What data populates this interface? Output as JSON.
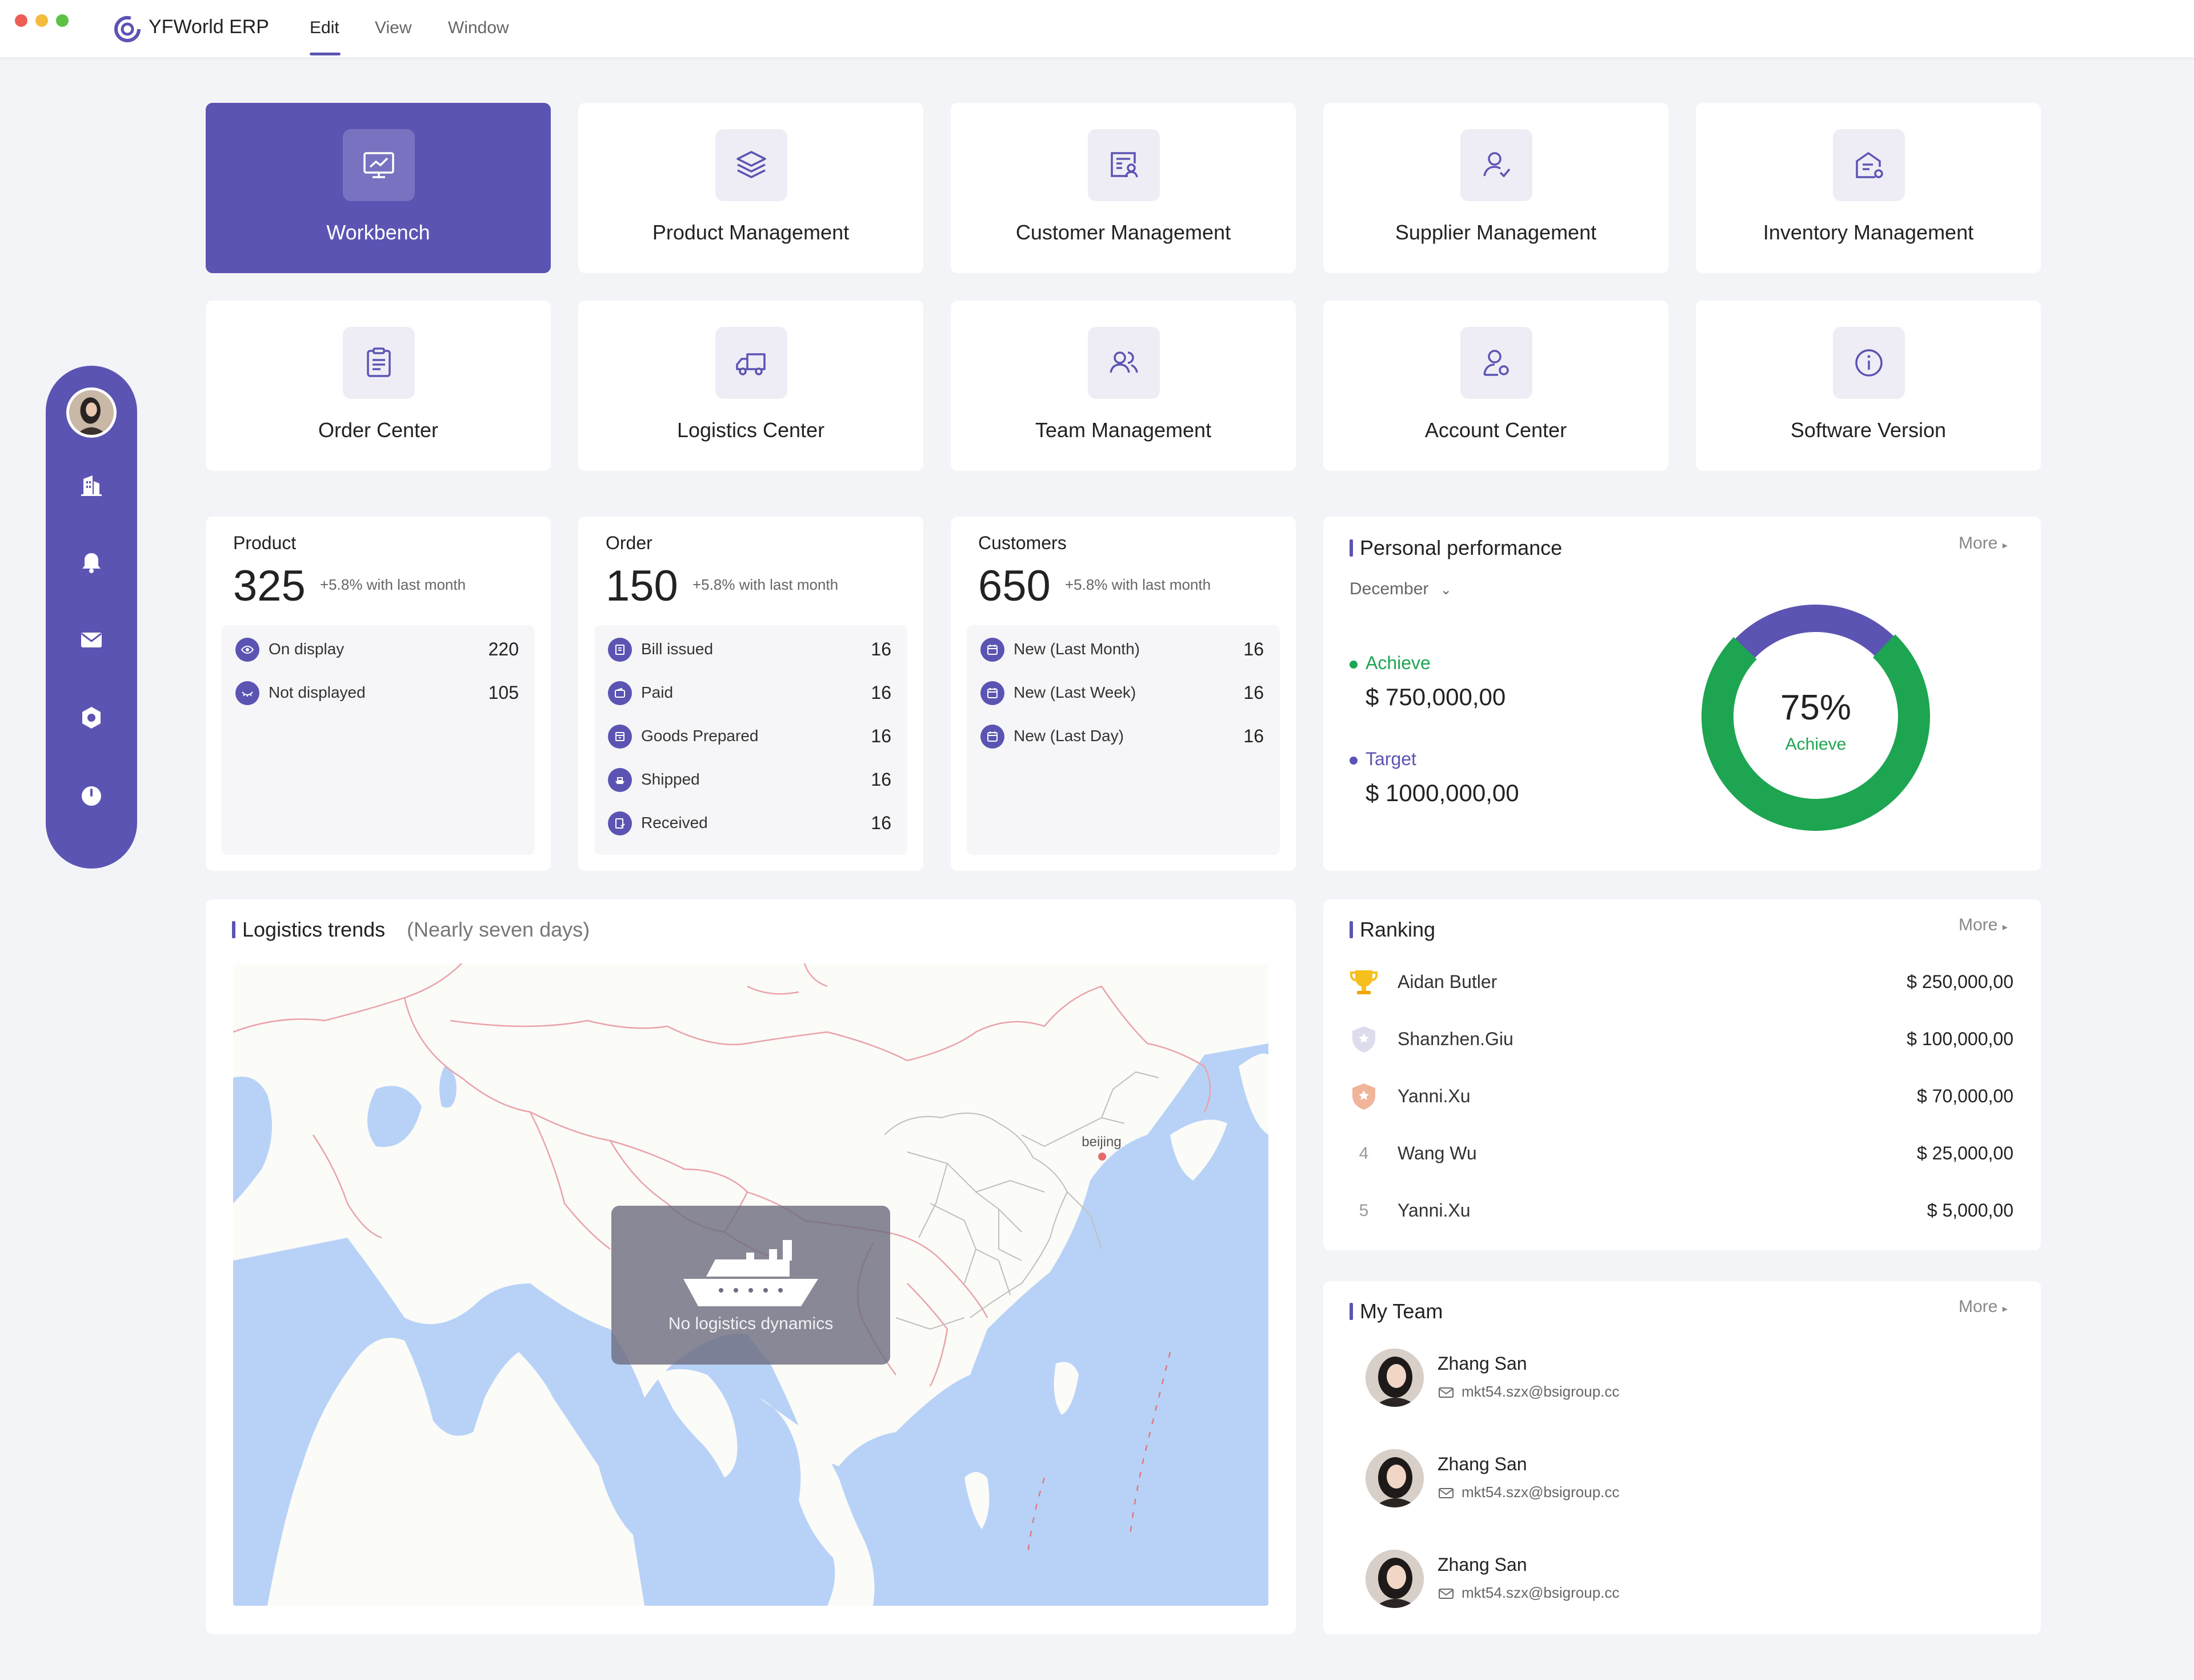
{
  "app": {
    "title": "YFWorld ERP"
  },
  "menu": [
    "Edit",
    "View",
    "Window"
  ],
  "colors": {
    "accent": "#5b54b3",
    "achieve": "#1da552",
    "background": "#f3f4f7"
  },
  "sidebar": {
    "icons": [
      "building-icon",
      "bell-icon",
      "mail-icon",
      "settings-icon",
      "power-icon"
    ]
  },
  "modules": [
    {
      "label": "Workbench",
      "icon": "monitor-chart-icon",
      "active": true
    },
    {
      "label": "Product Management",
      "icon": "layers-icon"
    },
    {
      "label": "Customer Management",
      "icon": "customer-card-icon"
    },
    {
      "label": "Supplier Management",
      "icon": "user-check-icon"
    },
    {
      "label": "Inventory Management",
      "icon": "warehouse-icon"
    },
    {
      "label": "Order Center",
      "icon": "clipboard-icon"
    },
    {
      "label": "Logistics Center",
      "icon": "truck-icon"
    },
    {
      "label": "Team Management",
      "icon": "users-icon"
    },
    {
      "label": "Account Center",
      "icon": "user-gear-icon"
    },
    {
      "label": "Software Version",
      "icon": "info-icon"
    }
  ],
  "stats": [
    {
      "title": "Product",
      "value": "325",
      "delta": "+5.8% with last month",
      "rows": [
        {
          "label": "On display",
          "value": "220",
          "icon": "eye-icon"
        },
        {
          "label": "Not displayed",
          "value": "105",
          "icon": "eye-closed-icon"
        }
      ]
    },
    {
      "title": "Order",
      "value": "150",
      "delta": "+5.8% with last month",
      "rows": [
        {
          "label": "Bill issued",
          "value": "16",
          "icon": "bill-icon"
        },
        {
          "label": "Paid",
          "value": "16",
          "icon": "wallet-icon"
        },
        {
          "label": "Goods Prepared",
          "value": "16",
          "icon": "package-icon"
        },
        {
          "label": "Shipped",
          "value": "16",
          "icon": "ship-icon"
        },
        {
          "label": "Received",
          "value": "16",
          "icon": "received-icon"
        }
      ]
    },
    {
      "title": "Customers",
      "value": "650",
      "delta": "+5.8% with last month",
      "rows": [
        {
          "label": "New (Last Month)",
          "value": "16",
          "icon": "calendar-month-icon"
        },
        {
          "label": "New (Last Week)",
          "value": "16",
          "icon": "calendar-week-icon"
        },
        {
          "label": "New (Last Day)",
          "value": "16",
          "icon": "calendar-day-icon"
        }
      ]
    }
  ],
  "performance": {
    "title": "Personal performance",
    "more": "More",
    "month": "December",
    "achieve_label": "Achieve",
    "achieve_value": "$ 750,000,00",
    "target_label": "Target",
    "target_value": "$ 1000,000,00",
    "percent_text": "75%",
    "percent": 0.75,
    "donut_caption": "Achieve"
  },
  "logistics": {
    "title": "Logistics trends",
    "subtitle": "(Nearly seven days)",
    "city_label": "beijing",
    "empty_text": "No logistics dynamics"
  },
  "ranking": {
    "title": "Ranking",
    "more": "More",
    "items": [
      {
        "rank": "1",
        "name": "Aidan Butler",
        "value": "$ 250,000,00",
        "medal": "gold-trophy-icon"
      },
      {
        "rank": "2",
        "name": "Shanzhen.Giu",
        "value": "$ 100,000,00",
        "medal": "silver-medal-icon"
      },
      {
        "rank": "3",
        "name": "Yanni.Xu",
        "value": "$ 70,000,00",
        "medal": "bronze-medal-icon"
      },
      {
        "rank": "4",
        "name": "Wang Wu",
        "value": "$ 25,000,00"
      },
      {
        "rank": "5",
        "name": "Yanni.Xu",
        "value": "$ 5,000,00"
      }
    ]
  },
  "team": {
    "title": "My Team",
    "more": "More",
    "members": [
      {
        "name": "Zhang San",
        "email": "mkt54.szx@bsigroup.cc"
      },
      {
        "name": "Zhang San",
        "email": "mkt54.szx@bsigroup.cc"
      },
      {
        "name": "Zhang San",
        "email": "mkt54.szx@bsigroup.cc"
      }
    ]
  }
}
